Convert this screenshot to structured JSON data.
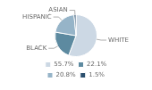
{
  "chart_data": {
    "type": "pie",
    "categories": [
      "WHITE",
      "BLACK",
      "HISPANIC",
      "ASIAN"
    ],
    "values": [
      55.7,
      22.1,
      20.8,
      1.5
    ],
    "value_labels": [
      "55.7%",
      "22.1%",
      "20.8%",
      "1.5%"
    ],
    "colors": [
      "#ccd8e4",
      "#5d8aa0",
      "#96b4c8",
      "#2b4f6e"
    ],
    "legend": "bottom"
  }
}
